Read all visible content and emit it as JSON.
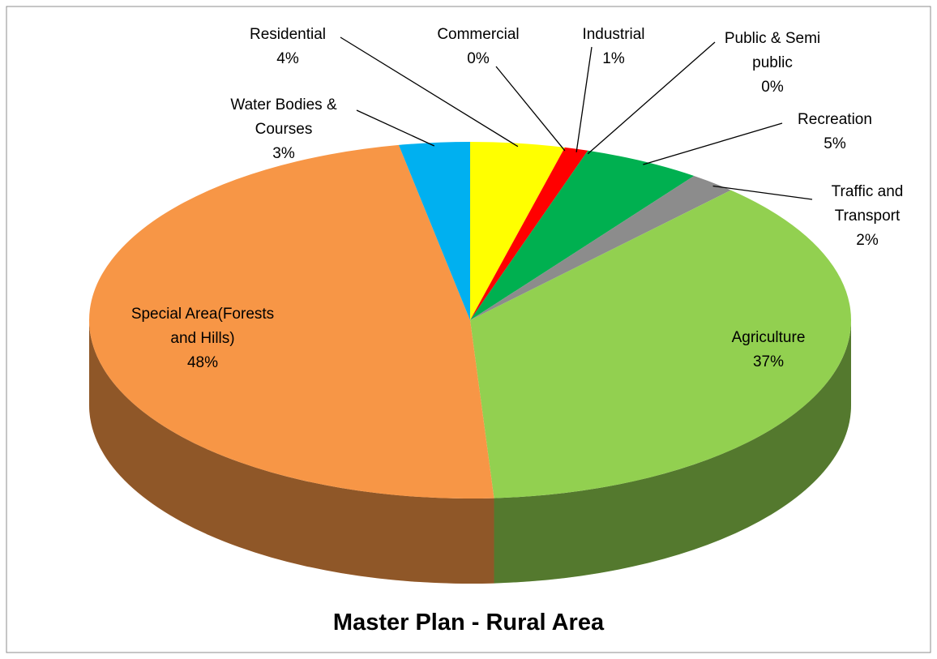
{
  "chart_data": {
    "type": "pie",
    "title": "Master Plan - Rural Area",
    "categories": [
      "Residential",
      "Commercial",
      "Industrial",
      "Public & Semi public",
      "Recreation",
      "Traffic and Transport",
      "Agriculture",
      "Special Area(Forests and Hills)",
      "Water Bodies & Courses"
    ],
    "values": [
      4,
      0,
      1,
      0,
      5,
      2,
      37,
      48,
      3
    ],
    "value_labels": [
      "4%",
      "0%",
      "1%",
      "0%",
      "5%",
      "2%",
      "37%",
      "48%",
      "3%"
    ],
    "colors": [
      "#ffff00",
      "#7030a0",
      "#ff0000",
      "#c0504d",
      "#00b050",
      "#8c8c8c",
      "#92d050",
      "#f79646",
      "#00b0f0"
    ]
  }
}
